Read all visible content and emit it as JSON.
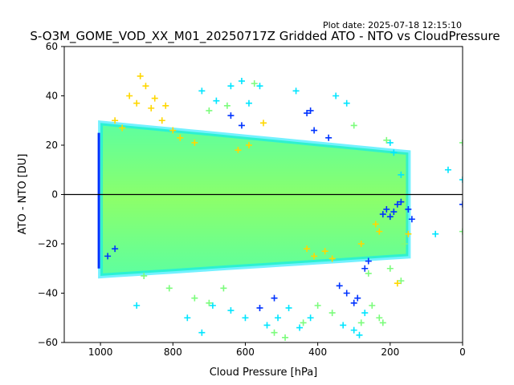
{
  "plot_date": "Plot date: 2025-07-18 12:15:10",
  "chart_data": {
    "type": "scatter",
    "title": "S-O3M_GOME_VOD_XX_M01_20250717Z Gridded ATO - NTO vs CloudPressure",
    "xlabel": "Cloud Pressure [hPa]",
    "ylabel": "ATO - NTO [DU]",
    "xlim": [
      1100,
      0
    ],
    "ylim": [
      -60,
      60
    ],
    "x_inverted": true,
    "xticks": [
      1000,
      800,
      600,
      400,
      200,
      0
    ],
    "yticks": [
      -60,
      -40,
      -20,
      0,
      20,
      40,
      60
    ],
    "reference_line_y": 0,
    "grid": false,
    "marker": "+",
    "colormap": "jet (value range 0.35-0.65)",
    "point_cloud": {
      "description_of_density": "dense band of points",
      "x_range": [
        1000,
        150
      ],
      "y_core_range": [
        -30,
        25
      ],
      "median_y": -5
    },
    "series": [
      {
        "color": "#00e5ff",
        "points": [
          [
            900,
            -45
          ],
          [
            760,
            -50
          ],
          [
            720,
            -56
          ],
          [
            690,
            -45
          ],
          [
            640,
            -47
          ],
          [
            600,
            -50
          ],
          [
            540,
            -53
          ],
          [
            510,
            -50
          ],
          [
            480,
            -46
          ],
          [
            450,
            -54
          ],
          [
            420,
            -50
          ],
          [
            330,
            -53
          ],
          [
            300,
            -55
          ],
          [
            285,
            -57
          ],
          [
            270,
            -48
          ],
          [
            320,
            37
          ],
          [
            350,
            40
          ],
          [
            560,
            44
          ],
          [
            610,
            46
          ],
          [
            640,
            44
          ],
          [
            460,
            42
          ],
          [
            720,
            42
          ],
          [
            680,
            38
          ],
          [
            590,
            37
          ],
          [
            200,
            21
          ],
          [
            190,
            17
          ],
          [
            170,
            8
          ],
          [
            75,
            -16
          ],
          [
            40,
            10
          ],
          [
            0,
            6
          ]
        ]
      },
      {
        "color": "#7cfc7c",
        "points": [
          [
            880,
            -33
          ],
          [
            810,
            -38
          ],
          [
            740,
            -42
          ],
          [
            700,
            -44
          ],
          [
            660,
            -38
          ],
          [
            520,
            -56
          ],
          [
            490,
            -58
          ],
          [
            440,
            -52
          ],
          [
            400,
            -45
          ],
          [
            360,
            -48
          ],
          [
            280,
            -52
          ],
          [
            250,
            -45
          ],
          [
            230,
            -50
          ],
          [
            220,
            -52
          ],
          [
            260,
            -32
          ],
          [
            200,
            -30
          ],
          [
            170,
            -35
          ],
          [
            160,
            -20
          ],
          [
            575,
            45
          ],
          [
            650,
            36
          ],
          [
            700,
            34
          ],
          [
            300,
            28
          ],
          [
            210,
            22
          ],
          [
            0,
            21
          ],
          [
            0,
            -15
          ]
        ]
      },
      {
        "color": "#ffd700",
        "points": [
          [
            890,
            48
          ],
          [
            875,
            44
          ],
          [
            920,
            40
          ],
          [
            900,
            37
          ],
          [
            860,
            35
          ],
          [
            850,
            39
          ],
          [
            820,
            36
          ],
          [
            830,
            30
          ],
          [
            800,
            26
          ],
          [
            780,
            23
          ],
          [
            740,
            21
          ],
          [
            620,
            18
          ],
          [
            590,
            20
          ],
          [
            550,
            29
          ],
          [
            430,
            -22
          ],
          [
            410,
            -25
          ],
          [
            380,
            -23
          ],
          [
            360,
            -26
          ],
          [
            280,
            -20
          ],
          [
            240,
            -12
          ],
          [
            230,
            -15
          ],
          [
            180,
            -36
          ],
          [
            150,
            -16
          ],
          [
            960,
            30
          ],
          [
            940,
            27
          ]
        ]
      },
      {
        "color": "#0033ff",
        "points": [
          [
            980,
            -25
          ],
          [
            960,
            -22
          ],
          [
            640,
            32
          ],
          [
            610,
            28
          ],
          [
            430,
            33
          ],
          [
            420,
            34
          ],
          [
            410,
            26
          ],
          [
            370,
            23
          ],
          [
            340,
            -37
          ],
          [
            320,
            -40
          ],
          [
            300,
            -44
          ],
          [
            290,
            -42
          ],
          [
            270,
            -30
          ],
          [
            260,
            -27
          ],
          [
            220,
            -8
          ],
          [
            210,
            -6
          ],
          [
            200,
            -9
          ],
          [
            190,
            -7
          ],
          [
            180,
            -4
          ],
          [
            170,
            -3
          ],
          [
            150,
            -6
          ],
          [
            140,
            -10
          ],
          [
            0,
            -4
          ],
          [
            560,
            -46
          ],
          [
            520,
            -42
          ]
        ]
      }
    ]
  }
}
